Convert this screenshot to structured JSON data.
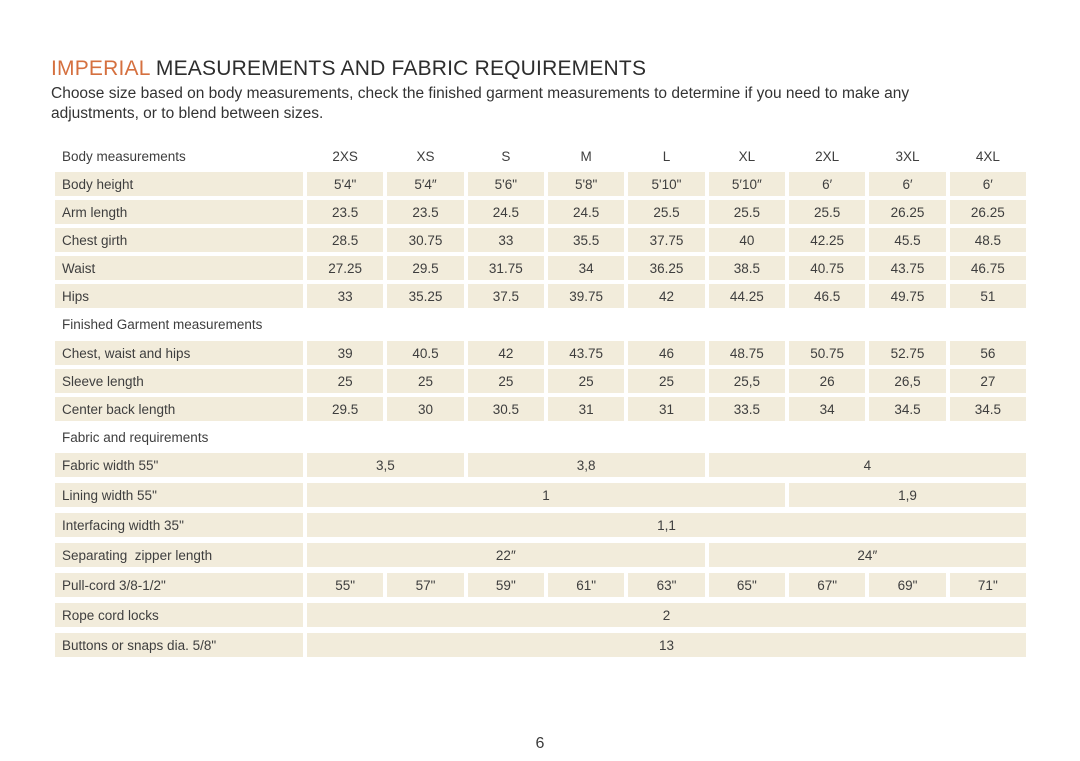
{
  "title": {
    "highlight": "IMPERIAL",
    "rest": " MEASUREMENTS AND FABRIC REQUIREMENTS"
  },
  "subtitle": "Choose size based on body measurements, check the finished garment measurements to determine if you need to make any adjustments, or to blend between sizes.",
  "page_number": "6",
  "colors": {
    "accent": "#d5703f",
    "cell_bg": "#f2ecdb",
    "text": "#3b3b3b"
  },
  "table": {
    "sizes": [
      "2XS",
      "XS",
      "S",
      "M",
      "L",
      "XL",
      "2XL",
      "3XL",
      "4XL"
    ],
    "sections": [
      {
        "title": "Body measurements",
        "show_sizes": true,
        "rows": [
          {
            "label": "Body height",
            "cells": [
              {
                "t": "5'4\""
              },
              {
                "t": "5′4″"
              },
              {
                "t": "5'6\""
              },
              {
                "t": "5'8\""
              },
              {
                "t": "5'10\""
              },
              {
                "t": "5′10″"
              },
              {
                "t": "6′"
              },
              {
                "t": "6′"
              },
              {
                "t": "6′"
              }
            ]
          },
          {
            "label": "Arm length",
            "cells": [
              {
                "t": "23.5"
              },
              {
                "t": "23.5"
              },
              {
                "t": "24.5"
              },
              {
                "t": "24.5"
              },
              {
                "t": "25.5"
              },
              {
                "t": "25.5"
              },
              {
                "t": "25.5"
              },
              {
                "t": "26.25"
              },
              {
                "t": "26.25"
              }
            ]
          },
          {
            "label": "Chest girth",
            "cells": [
              {
                "t": "28.5"
              },
              {
                "t": "30.75"
              },
              {
                "t": "33"
              },
              {
                "t": "35.5"
              },
              {
                "t": "37.75"
              },
              {
                "t": "40"
              },
              {
                "t": "42.25"
              },
              {
                "t": "45.5"
              },
              {
                "t": "48.5"
              }
            ]
          },
          {
            "label": "Waist",
            "cells": [
              {
                "t": "27.25"
              },
              {
                "t": "29.5"
              },
              {
                "t": "31.75"
              },
              {
                "t": "34"
              },
              {
                "t": "36.25"
              },
              {
                "t": "38.5"
              },
              {
                "t": "40.75"
              },
              {
                "t": "43.75"
              },
              {
                "t": "46.75"
              }
            ]
          },
          {
            "label": "Hips",
            "cells": [
              {
                "t": "33"
              },
              {
                "t": "35.25"
              },
              {
                "t": "37.5"
              },
              {
                "t": "39.75"
              },
              {
                "t": "42"
              },
              {
                "t": "44.25"
              },
              {
                "t": "46.5"
              },
              {
                "t": "49.75"
              },
              {
                "t": "51"
              }
            ]
          }
        ]
      },
      {
        "title": "Finished Garment measurements",
        "show_sizes": false,
        "rows": [
          {
            "label": "Chest, waist and hips",
            "cells": [
              {
                "t": "39"
              },
              {
                "t": "40.5"
              },
              {
                "t": "42"
              },
              {
                "t": "43.75"
              },
              {
                "t": "46"
              },
              {
                "t": "48.75"
              },
              {
                "t": "50.75"
              },
              {
                "t": "52.75"
              },
              {
                "t": "56"
              }
            ]
          },
          {
            "label": "Sleeve length",
            "cells": [
              {
                "t": "25"
              },
              {
                "t": "25"
              },
              {
                "t": "25"
              },
              {
                "t": "25"
              },
              {
                "t": "25"
              },
              {
                "t": "25,5"
              },
              {
                "t": "26"
              },
              {
                "t": "26,5"
              },
              {
                "t": "27"
              }
            ]
          },
          {
            "label": "Center back length",
            "cells": [
              {
                "t": "29.5"
              },
              {
                "t": "30"
              },
              {
                "t": "30.5"
              },
              {
                "t": "31"
              },
              {
                "t": "31"
              },
              {
                "t": "33.5"
              },
              {
                "t": "34"
              },
              {
                "t": "34.5"
              },
              {
                "t": "34.5"
              }
            ]
          }
        ]
      },
      {
        "title": "Fabric and requirements",
        "show_sizes": false,
        "loose": true,
        "rows": [
          {
            "label": "Fabric width 55\"",
            "cells": [
              {
                "t": "3,5",
                "span": 2
              },
              {
                "t": "3,8",
                "span": 3
              },
              {
                "t": "4",
                "span": 4
              }
            ]
          },
          {
            "label": "Lining width 55\"",
            "cells": [
              {
                "t": "1",
                "span": 6
              },
              {
                "t": "1,9",
                "span": 3
              }
            ]
          },
          {
            "label": "Interfacing width 35\"",
            "cells": [
              {
                "t": "1,1",
                "span": 9
              }
            ]
          },
          {
            "label": "Separating  zipper length",
            "cells": [
              {
                "t": "22″",
                "span": 5
              },
              {
                "t": "24″",
                "span": 4
              }
            ]
          },
          {
            "label": "Pull-cord 3/8-1/2\"",
            "cells": [
              {
                "t": "55\""
              },
              {
                "t": "57\""
              },
              {
                "t": "59\""
              },
              {
                "t": "61\""
              },
              {
                "t": "63\""
              },
              {
                "t": "65\""
              },
              {
                "t": "67\""
              },
              {
                "t": "69\""
              },
              {
                "t": "71\""
              }
            ]
          },
          {
            "label": "Rope cord locks",
            "cells": [
              {
                "t": "2",
                "span": 9
              }
            ]
          },
          {
            "label": "Buttons or snaps dia. 5/8\"",
            "cells": [
              {
                "t": "13",
                "span": 9
              }
            ]
          }
        ]
      }
    ]
  }
}
